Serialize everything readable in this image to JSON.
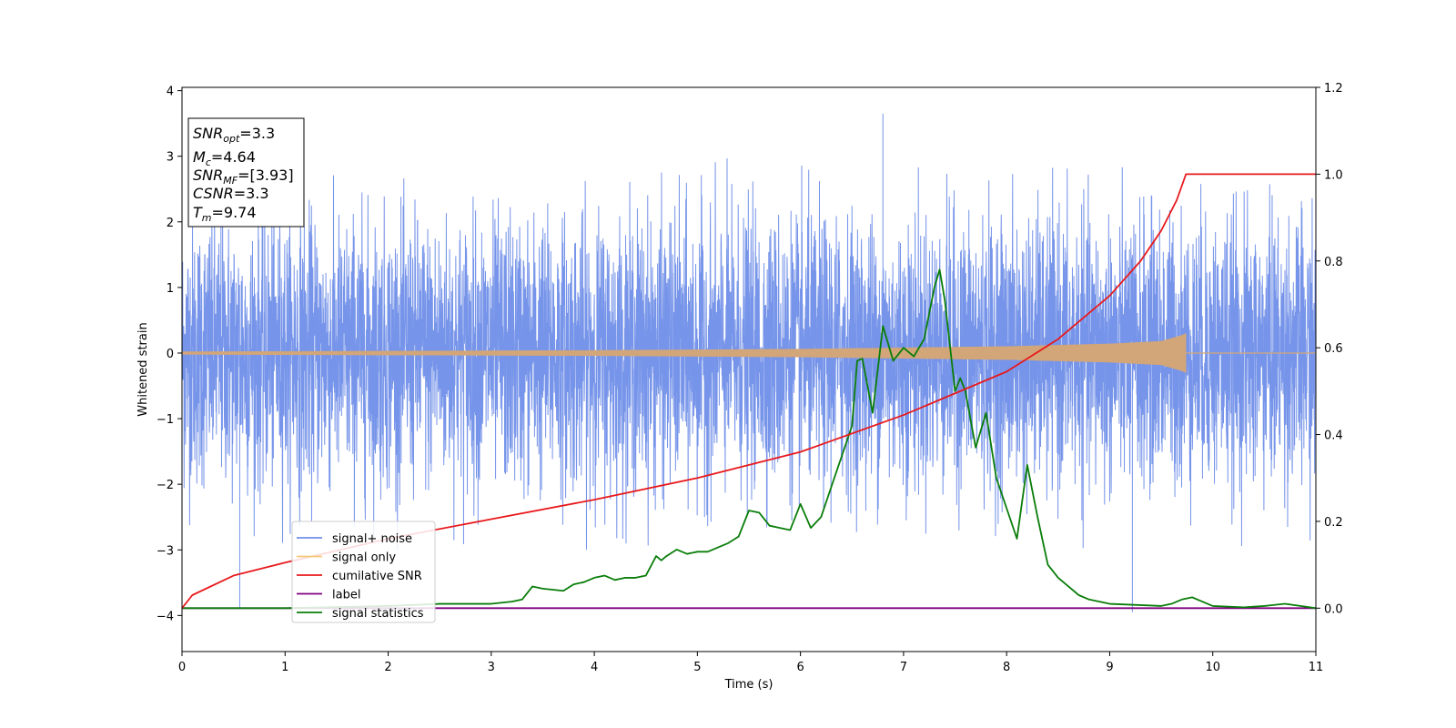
{
  "chart_data": {
    "type": "line",
    "xlabel": "Time (s)",
    "ylabel": "Whitened strain",
    "xlim": [
      0,
      11
    ],
    "ylim_left": [
      -4.55,
      4.05
    ],
    "ylim_right": [
      -0.1,
      1.2
    ],
    "x_ticks": [
      "0",
      "1",
      "2",
      "3",
      "4",
      "5",
      "6",
      "7",
      "8",
      "9",
      "10",
      "11"
    ],
    "y_left_ticks": [
      "4",
      "3",
      "2",
      "1",
      "0",
      "−1",
      "−2",
      "−3",
      "−4"
    ],
    "y_left_tick_values": [
      4,
      3,
      2,
      1,
      0,
      -1,
      -2,
      -3,
      -4
    ],
    "y_right_ticks": [
      "1.2",
      "1.0",
      "0.8",
      "0.6",
      "0.4",
      "0.2",
      "0.0"
    ],
    "y_right_tick_values": [
      1.2,
      1.0,
      0.8,
      0.6,
      0.4,
      0.2,
      0.0
    ],
    "info_box": {
      "snr_opt": {
        "sym": "SNR",
        "sub": "opt",
        "value": "=3.3"
      },
      "mc": {
        "sym": "M",
        "sub": "c",
        "value": "=4.64"
      },
      "snr_mf": {
        "sym": "SNR",
        "sub": "MF",
        "value": "=[3.93]"
      },
      "csnr": {
        "sym": "CSNR",
        "sub": "",
        "value": "=3.3"
      },
      "tm": {
        "sym": "T",
        "sub": "m",
        "value": "=9.74"
      }
    },
    "legend": {
      "placement": "lower-left",
      "items": [
        {
          "label": "signal+ noise",
          "color": "#6f8ee8"
        },
        {
          "label": "signal only",
          "color": "#f5c878"
        },
        {
          "label": "cumilative SNR",
          "color": "#e8191c"
        },
        {
          "label": "label",
          "color": "#800080"
        },
        {
          "label": "signal statistics",
          "color": "#0a7d0a"
        }
      ]
    },
    "series": [
      {
        "name": "signal+ noise",
        "axis": "left",
        "color": "#6f8ee8",
        "noise_sigma": 1.0,
        "peak_envelope": [
          2.3,
          2.9
        ],
        "spikes": [
          {
            "x": 0.56,
            "y": -3.9
          },
          {
            "x": 6.8,
            "y": 3.65
          },
          {
            "x": 9.22,
            "y": -3.95
          }
        ]
      },
      {
        "name": "signal only",
        "axis": "left",
        "color": "#d2a679",
        "chirp_end": 9.74,
        "envelope": {
          "x": [
            0,
            2,
            4,
            5,
            6,
            7,
            8,
            9,
            9.5,
            9.7,
            9.74
          ],
          "y": [
            0.02,
            0.03,
            0.04,
            0.05,
            0.06,
            0.08,
            0.1,
            0.14,
            0.18,
            0.27,
            0.3
          ]
        }
      },
      {
        "name": "cumilative SNR",
        "axis": "right",
        "color": "#e8191c",
        "x": [
          0,
          0.1,
          0.5,
          1,
          2,
          3,
          4,
          5,
          6,
          7,
          8,
          8.5,
          9,
          9.3,
          9.5,
          9.65,
          9.74,
          11
        ],
        "y": [
          0.0,
          0.03,
          0.075,
          0.105,
          0.16,
          0.205,
          0.25,
          0.3,
          0.36,
          0.445,
          0.545,
          0.62,
          0.72,
          0.8,
          0.87,
          0.94,
          1.0,
          1.0
        ]
      },
      {
        "name": "label",
        "axis": "right",
        "color": "#800080",
        "x": [
          0,
          11
        ],
        "y": [
          0.0,
          0.0
        ]
      },
      {
        "name": "signal statistics",
        "axis": "right",
        "color": "#0a7d0a",
        "x": [
          0,
          1,
          2,
          2.5,
          3.0,
          3.2,
          3.3,
          3.4,
          3.5,
          3.7,
          3.8,
          3.9,
          4.0,
          4.1,
          4.2,
          4.3,
          4.4,
          4.5,
          4.6,
          4.65,
          4.7,
          4.8,
          4.9,
          5.0,
          5.1,
          5.2,
          5.3,
          5.4,
          5.5,
          5.6,
          5.7,
          5.8,
          5.9,
          6.0,
          6.1,
          6.2,
          6.3,
          6.4,
          6.5,
          6.55,
          6.6,
          6.7,
          6.8,
          6.9,
          7.0,
          7.1,
          7.2,
          7.3,
          7.35,
          7.4,
          7.5,
          7.55,
          7.6,
          7.7,
          7.8,
          7.9,
          8.0,
          8.1,
          8.2,
          8.3,
          8.4,
          8.5,
          8.6,
          8.7,
          8.8,
          9.0,
          9.5,
          9.6,
          9.7,
          9.8,
          9.9,
          10.0,
          10.3,
          10.5,
          10.7,
          11.0
        ],
        "y": [
          0.0,
          0.0,
          0.005,
          0.01,
          0.01,
          0.015,
          0.02,
          0.05,
          0.045,
          0.04,
          0.055,
          0.06,
          0.07,
          0.075,
          0.065,
          0.07,
          0.07,
          0.075,
          0.12,
          0.11,
          0.12,
          0.135,
          0.125,
          0.13,
          0.13,
          0.14,
          0.15,
          0.165,
          0.225,
          0.22,
          0.19,
          0.185,
          0.18,
          0.24,
          0.185,
          0.21,
          0.28,
          0.35,
          0.42,
          0.57,
          0.575,
          0.45,
          0.65,
          0.57,
          0.6,
          0.58,
          0.62,
          0.74,
          0.78,
          0.71,
          0.5,
          0.53,
          0.5,
          0.37,
          0.45,
          0.3,
          0.23,
          0.16,
          0.33,
          0.21,
          0.1,
          0.07,
          0.05,
          0.03,
          0.02,
          0.01,
          0.005,
          0.01,
          0.02,
          0.025,
          0.015,
          0.005,
          0.002,
          0.005,
          0.01,
          0.0
        ]
      }
    ]
  }
}
